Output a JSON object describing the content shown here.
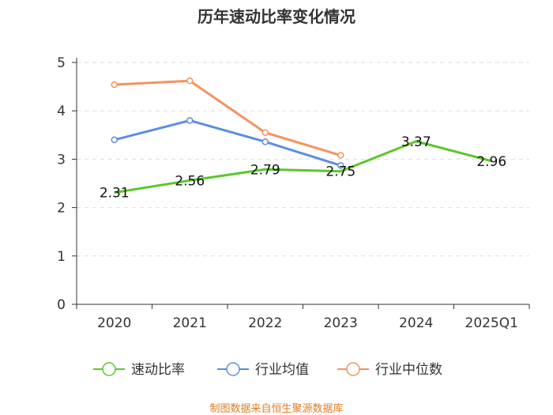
{
  "chart_data": {
    "type": "line",
    "title": "历年速动比率变化情况",
    "categories": [
      "2020",
      "2021",
      "2022",
      "2023",
      "2024",
      "2025Q1"
    ],
    "ylim": [
      0,
      5
    ],
    "yticks": [
      "0",
      "1",
      "2",
      "3",
      "4",
      "5"
    ],
    "grid": true,
    "legend_position": "bottom",
    "series": [
      {
        "name": "速动比率",
        "color": "#5cc72b",
        "values": [
          2.31,
          2.56,
          2.79,
          2.75,
          3.37,
          2.96
        ],
        "labels": [
          "2.31",
          "2.56",
          "2.79",
          "2.75",
          "3.37",
          "2.96"
        ]
      },
      {
        "name": "行业均值",
        "color": "#5b8ee0",
        "values": [
          3.4,
          3.8,
          3.36,
          2.87,
          null,
          null
        ]
      },
      {
        "name": "行业中位数",
        "color": "#f5925f",
        "values": [
          4.54,
          4.62,
          3.55,
          3.08,
          null,
          null
        ]
      }
    ],
    "source": "制图数据来自恒生聚源数据库"
  }
}
